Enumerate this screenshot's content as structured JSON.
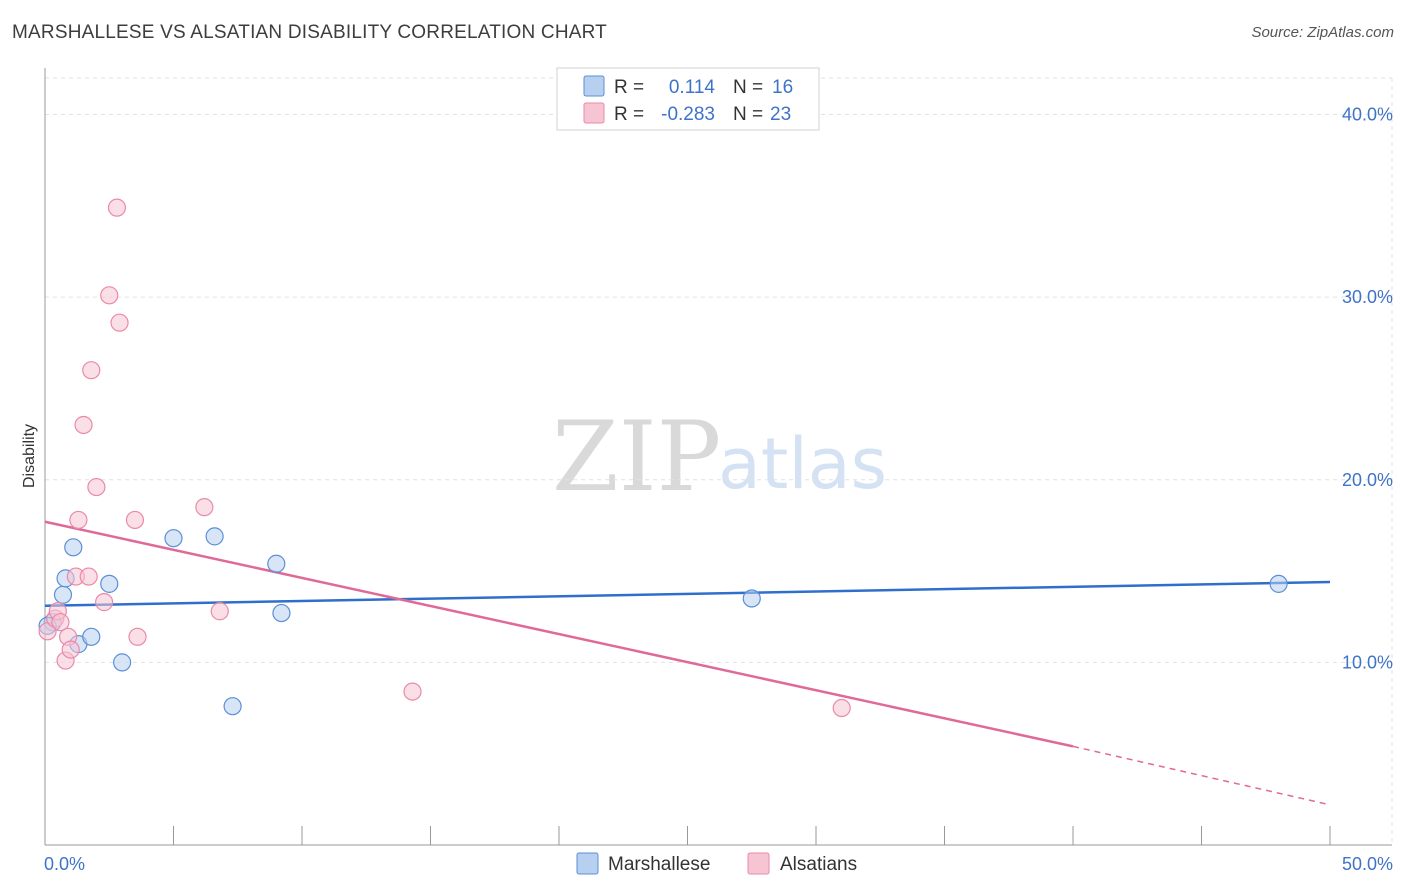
{
  "header": {
    "title": "MARSHALLESE VS ALSATIAN DISABILITY CORRELATION CHART",
    "source": "Source: ZipAtlas.com"
  },
  "colors": {
    "marshallese": "#5b8fd6",
    "marshallese_fill": "#b8d0f0",
    "marshallese_line": "#2f6fcc",
    "alsatians": "#e98aab",
    "alsatians_fill": "#f7c4d4",
    "alsatians_line": "#e06a97",
    "tick_text": "#3f73c8"
  },
  "legend": {
    "rows": [
      {
        "r_label": "R =",
        "r_value": "0.114",
        "n_label": "N =",
        "n_value": "16"
      },
      {
        "r_label": "R =",
        "r_value": "-0.283",
        "n_label": "N =",
        "n_value": "23"
      }
    ]
  },
  "watermark": {
    "zip": "ZIP",
    "atlas": "atlas"
  },
  "chart_data": {
    "type": "scatter",
    "title": "MARSHALLESE VS ALSATIAN DISABILITY CORRELATION CHART",
    "xlabel": "",
    "ylabel": "Disability",
    "xlim": [
      0,
      50
    ],
    "ylim": [
      0,
      42
    ],
    "x_tick_labels": [
      "0.0%",
      "50.0%"
    ],
    "y_ticks": [
      10,
      20,
      30,
      40
    ],
    "y_tick_labels": [
      "10.0%",
      "20.0%",
      "30.0%",
      "40.0%"
    ],
    "grid": true,
    "legend_position": "top-center",
    "series": [
      {
        "name": "Marshallese",
        "points": [
          [
            0.3,
            12.2
          ],
          [
            0.7,
            13.7
          ],
          [
            0.8,
            14.6
          ],
          [
            1.1,
            16.3
          ],
          [
            1.3,
            11.0
          ],
          [
            1.8,
            11.4
          ],
          [
            2.5,
            14.3
          ],
          [
            3.0,
            10.0
          ],
          [
            5.0,
            16.8
          ],
          [
            6.6,
            16.9
          ],
          [
            7.3,
            7.6
          ],
          [
            9.0,
            15.4
          ],
          [
            9.2,
            12.7
          ],
          [
            27.5,
            13.5
          ],
          [
            48.0,
            14.3
          ],
          [
            0.1,
            12.0
          ]
        ],
        "trend": {
          "x0": 0,
          "y0": 13.1,
          "x1": 50,
          "y1": 14.4
        }
      },
      {
        "name": "Alsatians",
        "points": [
          [
            0.1,
            11.7
          ],
          [
            0.4,
            12.4
          ],
          [
            0.5,
            12.8
          ],
          [
            0.6,
            12.2
          ],
          [
            0.8,
            10.1
          ],
          [
            0.9,
            11.4
          ],
          [
            1.0,
            10.7
          ],
          [
            1.2,
            14.7
          ],
          [
            1.3,
            17.8
          ],
          [
            1.7,
            14.7
          ],
          [
            1.5,
            23.0
          ],
          [
            1.8,
            26.0
          ],
          [
            2.0,
            19.6
          ],
          [
            2.3,
            13.3
          ],
          [
            2.5,
            30.1
          ],
          [
            2.8,
            34.9
          ],
          [
            2.9,
            28.6
          ],
          [
            3.5,
            17.8
          ],
          [
            3.6,
            11.4
          ],
          [
            6.2,
            18.5
          ],
          [
            6.8,
            12.8
          ],
          [
            14.3,
            8.4
          ],
          [
            31.0,
            7.5
          ]
        ],
        "trend": {
          "x0": 0,
          "y0": 17.7,
          "x1": 40,
          "y1": 5.4,
          "dash_x1": 50,
          "dash_y1": 2.2
        }
      }
    ]
  }
}
